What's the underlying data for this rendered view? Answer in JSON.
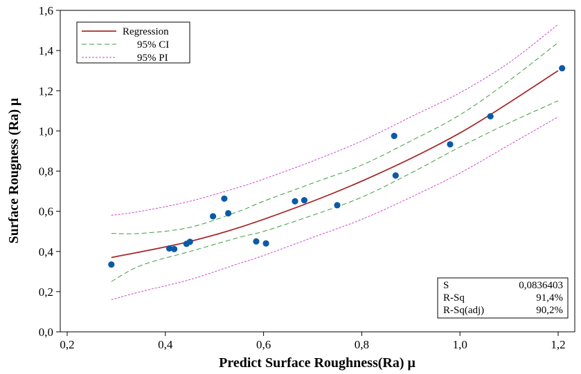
{
  "chart_data": {
    "type": "scatter",
    "xlabel": "Predict Surface Roughness(Ra) μ",
    "ylabel": "Surface Rougness (Ra) μ",
    "xlim": [
      0.2,
      1.23
    ],
    "ylim": [
      0.0,
      1.6
    ],
    "xticks": [
      0.2,
      0.4,
      0.6,
      0.8,
      1.0,
      1.2
    ],
    "yticks": [
      0.0,
      0.2,
      0.4,
      0.6,
      0.8,
      1.0,
      1.2,
      1.4,
      1.6
    ],
    "xtick_labels": [
      "0,2",
      "0,4",
      "0,6",
      "0,8",
      "1,0",
      "1,2"
    ],
    "ytick_labels": [
      "0,0",
      "0,2",
      "0,4",
      "0,6",
      "0,8",
      "1,0",
      "1,2",
      "1,4",
      "1,6"
    ],
    "grid": false,
    "legend_position": "top-left",
    "legend": [
      {
        "label": "Regression",
        "style": "solid",
        "color": "#a52a2a"
      },
      {
        "label": "95% CI",
        "style": "dashed",
        "color": "#3e9a3e"
      },
      {
        "label": "95% PI",
        "style": "dotted",
        "color": "#cc44cc"
      }
    ],
    "point_color": "#0b5aa6",
    "points": [
      {
        "x": 0.29,
        "y": 0.335
      },
      {
        "x": 0.408,
        "y": 0.415
      },
      {
        "x": 0.418,
        "y": 0.412
      },
      {
        "x": 0.443,
        "y": 0.438
      },
      {
        "x": 0.45,
        "y": 0.448
      },
      {
        "x": 0.497,
        "y": 0.575
      },
      {
        "x": 0.52,
        "y": 0.663
      },
      {
        "x": 0.528,
        "y": 0.59
      },
      {
        "x": 0.585,
        "y": 0.45
      },
      {
        "x": 0.605,
        "y": 0.44
      },
      {
        "x": 0.664,
        "y": 0.65
      },
      {
        "x": 0.683,
        "y": 0.655
      },
      {
        "x": 0.75,
        "y": 0.63
      },
      {
        "x": 0.866,
        "y": 0.975
      },
      {
        "x": 0.869,
        "y": 0.778
      },
      {
        "x": 0.98,
        "y": 0.933
      },
      {
        "x": 1.062,
        "y": 1.073
      },
      {
        "x": 1.208,
        "y": 1.312
      }
    ],
    "regression": {
      "x": [
        0.29,
        0.45,
        0.6,
        0.8,
        1.0,
        1.2
      ],
      "y": [
        0.37,
        0.45,
        0.56,
        0.75,
        0.99,
        1.3
      ]
    },
    "ci_upper": {
      "x": [
        0.29,
        0.35,
        0.45,
        0.55,
        0.6,
        0.7,
        0.8,
        0.9,
        1.0,
        1.1,
        1.2
      ],
      "y": [
        0.49,
        0.49,
        0.52,
        0.6,
        0.65,
        0.74,
        0.83,
        0.95,
        1.08,
        1.25,
        1.44
      ]
    },
    "ci_lower": {
      "x": [
        0.29,
        0.35,
        0.45,
        0.55,
        0.6,
        0.7,
        0.8,
        0.9,
        1.0,
        1.1,
        1.2
      ],
      "y": [
        0.25,
        0.33,
        0.4,
        0.47,
        0.5,
        0.58,
        0.67,
        0.79,
        0.92,
        1.04,
        1.15
      ]
    },
    "pi_upper": {
      "x": [
        0.29,
        0.35,
        0.45,
        0.55,
        0.6,
        0.7,
        0.8,
        0.9,
        1.0,
        1.1,
        1.2
      ],
      "y": [
        0.58,
        0.6,
        0.65,
        0.72,
        0.76,
        0.85,
        0.95,
        1.07,
        1.19,
        1.34,
        1.53
      ]
    },
    "pi_lower": {
      "x": [
        0.29,
        0.35,
        0.45,
        0.55,
        0.6,
        0.7,
        0.8,
        0.9,
        1.0,
        1.1,
        1.2
      ],
      "y": [
        0.16,
        0.2,
        0.26,
        0.34,
        0.38,
        0.47,
        0.56,
        0.67,
        0.79,
        0.93,
        1.07
      ]
    },
    "stats": [
      {
        "label": "S",
        "value": "0,0836403"
      },
      {
        "label": "R-Sq",
        "value": "91,4%"
      },
      {
        "label": "R-Sq(adj)",
        "value": "90,2%"
      }
    ]
  }
}
